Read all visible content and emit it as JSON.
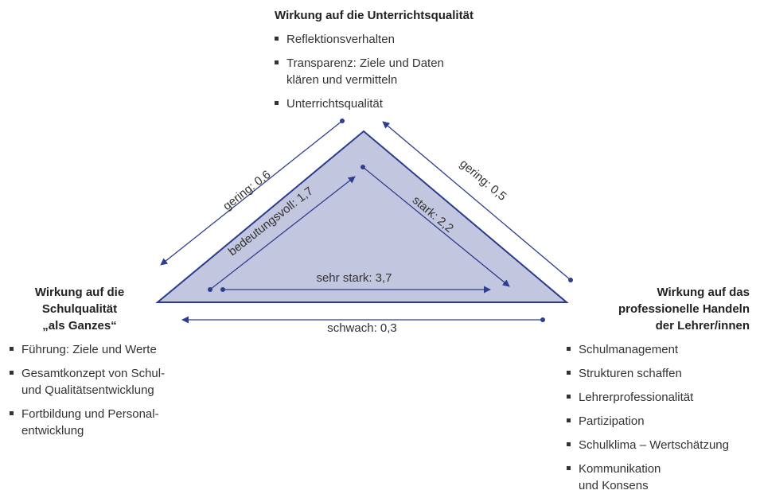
{
  "top": {
    "title": [
      "Wirkung auf die Unterrichtsqualität"
    ],
    "items": [
      [
        "Reflektionsverhalten"
      ],
      [
        "Transparenz: Ziele und Daten",
        "klären und vermitteln"
      ],
      [
        "Unterrichtsqualität"
      ]
    ]
  },
  "left": {
    "title": [
      "Wirkung auf die",
      "Schulqualität",
      "„als Ganzes“"
    ],
    "items": [
      [
        "Führung: Ziele und Werte"
      ],
      [
        "Gesamtkonzept von Schul-",
        "und Qualitätsentwicklung"
      ],
      [
        "Fortbildung und Personal-",
        "entwicklung"
      ]
    ]
  },
  "right": {
    "title": [
      "Wirkung auf das",
      "professionelle Handeln",
      "der Lehrer/innen"
    ],
    "items": [
      [
        "Schulmanagement"
      ],
      [
        "Strukturen schaffen"
      ],
      [
        "Lehrerprofessionalität"
      ],
      [
        "Partizipation"
      ],
      [
        "Schulklima – Wertschätzung"
      ],
      [
        "Kommunikation",
        "und Konsens"
      ]
    ]
  },
  "edges": [
    "gering: 0,6",
    "gering: 0,5",
    "schwach: 0,3",
    "bedeutungsvoll: 1,7",
    "stark: 2,2",
    "sehr stark: 3,7"
  ]
}
